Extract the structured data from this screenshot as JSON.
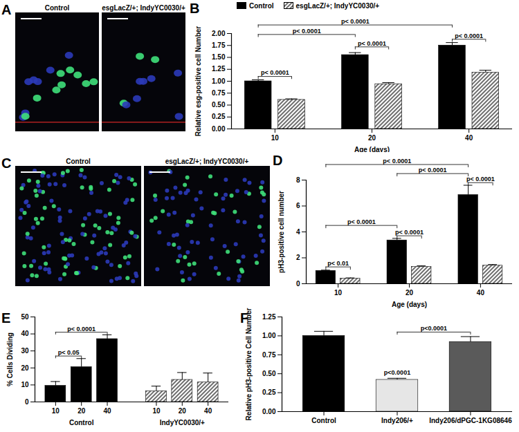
{
  "images": [
    {
      "panel": "A",
      "labels": [
        "Control",
        "esgLacZ/+; IndyYC0030/+"
      ]
    },
    {
      "panel": "C",
      "labels": [
        "Control",
        "esgLacZ/+; IndyYC0030/+"
      ]
    }
  ],
  "chart_data": [
    {
      "panel": "B",
      "type": "bar",
      "y_label": "Relative esg-positive cell Number",
      "x_label": "Age (days)",
      "categories": [
        10,
        20,
        40
      ],
      "series": [
        {
          "name": "Control",
          "color": "#000000",
          "values": [
            1.0,
            1.55,
            1.75
          ],
          "errors": [
            0.03,
            0.05,
            0.06
          ]
        },
        {
          "name": "esgLacZ/+; IndyYC0030/+",
          "color": "#6e6e6e",
          "values": [
            0.61,
            0.94,
            1.18
          ],
          "errors": [
            0.02,
            0.03,
            0.05
          ]
        }
      ],
      "legend": "top",
      "ylim": [
        0,
        2
      ],
      "yticks": [
        {
          "value": 0,
          "label": "0.00"
        },
        {
          "value": 0.25,
          "label": "0.25"
        },
        {
          "value": 0.5,
          "label": "0.50"
        },
        {
          "value": 0.75,
          "label": "0.75"
        },
        {
          "value": 1,
          "label": "1.00"
        },
        {
          "value": 1.25,
          "label": "1.25"
        },
        {
          "value": 1.5,
          "label": "1.50"
        },
        {
          "value": 1.75,
          "label": "1.75"
        },
        {
          "value": 2,
          "label": "2.00"
        }
      ],
      "annotations": [
        {
          "text": "p< 0.0001",
          "from": {
            "category": 10,
            "series": 0
          },
          "to": {
            "category": 10,
            "series": 1
          },
          "y": 1.1
        },
        {
          "text": "p< 0.0001",
          "from": {
            "category": 20,
            "series": 0
          },
          "to": {
            "category": 20,
            "series": 1
          },
          "y": 1.72
        },
        {
          "text": "p< 0.0001",
          "from": {
            "category": 40,
            "series": 0
          },
          "to": {
            "category": 40,
            "series": 1
          },
          "y": 1.88
        },
        {
          "text": "p< 0.0001",
          "from": {
            "category": 10,
            "series": 0
          },
          "to": {
            "category": 20,
            "series": 0
          },
          "y": 1.98
        },
        {
          "text": "p< 0.0001",
          "from": {
            "category": 10,
            "series": 0
          },
          "to": {
            "category": 40,
            "series": 0
          },
          "y": 2.18
        }
      ]
    },
    {
      "panel": "D",
      "type": "bar",
      "y_label": "pH3-positive cell number",
      "x_label": "Age (days)",
      "categories": [
        10,
        20,
        40
      ],
      "series": [
        {
          "color": "#000000",
          "values": [
            1.0,
            3.35,
            6.85
          ],
          "errors": [
            0.05,
            0.15,
            0.75
          ]
        },
        {
          "color": "#6e6e6e",
          "values": [
            0.4,
            1.3,
            1.4
          ],
          "errors": [
            0.05,
            0.08,
            0.08
          ]
        }
      ],
      "ylim": [
        0,
        8
      ],
      "yticks": [
        0,
        2,
        4,
        6,
        8
      ],
      "annotations": [
        {
          "text": "p< 0.01",
          "from": {
            "category": 10,
            "series": 0
          },
          "to": {
            "category": 10,
            "series": 1
          },
          "y": 1.3
        },
        {
          "text": "p< 0.0001",
          "from": {
            "category": 20,
            "series": 0
          },
          "to": {
            "category": 20,
            "series": 1
          },
          "y": 3.7
        },
        {
          "text": "p< 0.0001",
          "from": {
            "category": 10,
            "series": 0
          },
          "to": {
            "category": 20,
            "series": 0
          },
          "y": 4.5
        },
        {
          "text": "p< 0.0001",
          "from": {
            "category": 40,
            "series": 0
          },
          "to": {
            "category": 40,
            "series": 1
          },
          "y": 7.8
        },
        {
          "text": "p< 0.0001",
          "from": {
            "category": 20,
            "series": 0
          },
          "to": {
            "category": 40,
            "series": 0
          },
          "y": 8.5
        },
        {
          "text": "p< 0.0001",
          "from": {
            "category": 10,
            "series": 0
          },
          "to": {
            "category": 40,
            "series": 0
          },
          "y": 9.2
        }
      ]
    },
    {
      "panel": "E",
      "type": "bar",
      "y_label": "% Cells Dividing",
      "categories": [
        10,
        20,
        40
      ],
      "series": [
        {
          "name": "Control",
          "color": "#000000",
          "values": [
            9.5,
            20.5,
            37
          ],
          "errors": [
            2.5,
            5,
            2.5
          ]
        },
        {
          "name": "IndyYC0030/+",
          "color": "#6e6e6e",
          "values": [
            6.3,
            13,
            11.5
          ],
          "errors": [
            3,
            4.3,
            5.5
          ]
        }
      ],
      "ylim": [
        0,
        50
      ],
      "yticks": [
        0,
        10,
        20,
        30,
        40,
        50
      ],
      "annotations": [
        {
          "text": "p< 0.05",
          "from": {
            "category": 10,
            "series": 0
          },
          "to": {
            "category": 20,
            "series": 0
          },
          "y": 27
        },
        {
          "text": "p< 0.0001",
          "from": {
            "category": 10,
            "series": 0
          },
          "to": {
            "category": 40,
            "series": 0
          },
          "y": 41
        }
      ]
    },
    {
      "panel": "F",
      "type": "bar",
      "y_label": "Relative pH3-positive Cell Number",
      "categories": [
        "Control",
        "Indy206/+",
        "Indy206/dPGC-1KG08646"
      ],
      "values": [
        1.0,
        0.42,
        0.92
      ],
      "errors": [
        0.06,
        0.02,
        0.07
      ],
      "colors": [
        "#000000",
        "#e6e6e6",
        "#5a5a5a"
      ],
      "ylim": [
        0,
        1.25
      ],
      "yticks": [
        {
          "value": 0,
          "label": "0.00"
        },
        {
          "value": 0.25,
          "label": "0.25"
        },
        {
          "value": 0.5,
          "label": "0.50"
        },
        {
          "value": 0.75,
          "label": "0.75"
        },
        {
          "value": 1,
          "label": "1.00"
        },
        {
          "value": 1.25,
          "label": "1.25"
        }
      ],
      "annotations": [
        {
          "text": "p<0.0001",
          "at": {
            "category": "Indy206/+"
          },
          "y": 0.47
        },
        {
          "text": "p<0.0001",
          "from": {
            "category": "Indy206/+"
          },
          "to": {
            "category": "Indy206/dPGC-1KG08646"
          },
          "y": 1.05
        }
      ]
    }
  ]
}
